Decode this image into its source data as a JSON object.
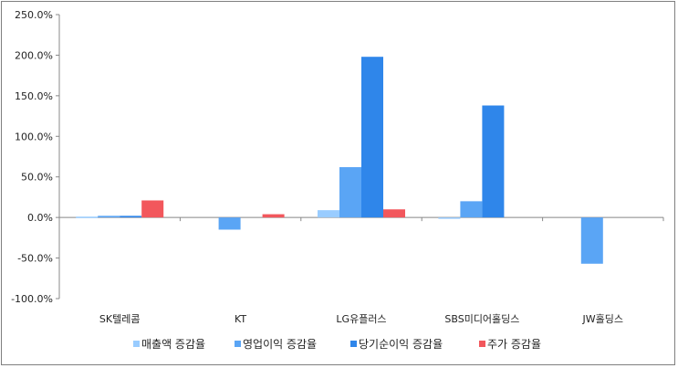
{
  "chart_data": {
    "type": "bar",
    "categories": [
      "SK텔레콤",
      "KT",
      "LG유플러스",
      "SBS미디어홀딩스",
      "JW홀딩스"
    ],
    "series": [
      {
        "name": "매출액 증감율",
        "color": "#99ccff",
        "values": [
          1.0,
          0.0,
          9.0,
          -1.0,
          0.0
        ]
      },
      {
        "name": "영업이익 증감율",
        "color": "#5aa5f5",
        "values": [
          2.0,
          -15.0,
          62.0,
          20.0,
          -57.0
        ]
      },
      {
        "name": "당기순이익 증감율",
        "color": "#2f86ea",
        "values": [
          2.0,
          0.0,
          198.0,
          138.0,
          0.0
        ]
      },
      {
        "name": "주가 증감율",
        "color": "#f2575c",
        "values": [
          21.0,
          4.0,
          10.0,
          0.0,
          0.0
        ]
      }
    ],
    "yticks": [
      "250.0%",
      "200.0%",
      "150.0%",
      "100.0%",
      "50.0%",
      "0.0%",
      "-50.0%",
      "-100.0%"
    ],
    "ylim": [
      -100,
      250
    ],
    "grid": false,
    "legend": "bottom"
  }
}
